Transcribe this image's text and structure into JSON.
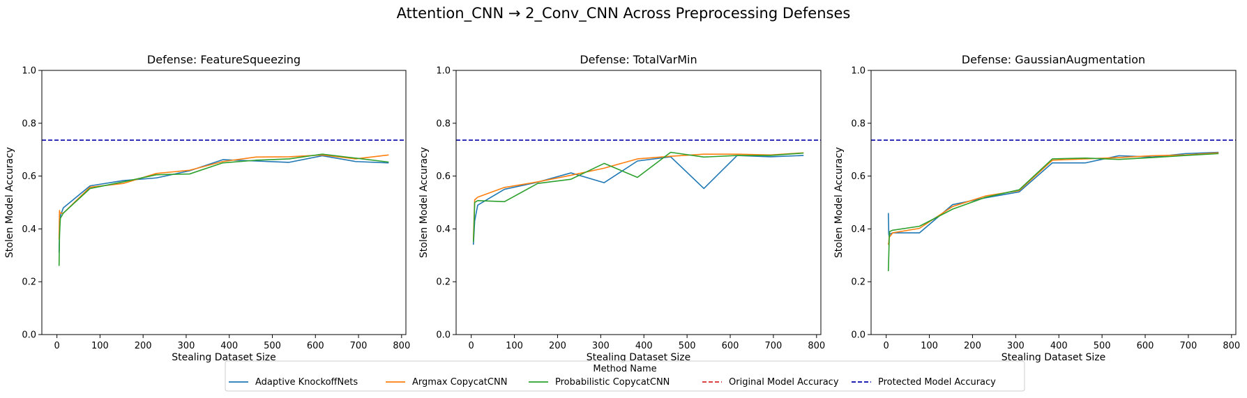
{
  "figure": {
    "title": "Attention_CNN → 2_Conv_CNN Across Preprocessing Defenses"
  },
  "legend": {
    "title": "Method Name",
    "placement": "bottom-center",
    "entries": [
      {
        "name": "Adaptive KnockoffNets",
        "color": "#1f77b4",
        "style": "solid"
      },
      {
        "name": "Argmax CopycatCNN",
        "color": "#ff7f0e",
        "style": "solid"
      },
      {
        "name": "Probabilistic CopycatCNN",
        "color": "#2ca02c",
        "style": "solid"
      },
      {
        "name": "Original Model Accuracy",
        "color": "#d62728",
        "style": "dashed"
      },
      {
        "name": "Protected Model Accuracy",
        "color": "#0000aa",
        "style": "dashed"
      }
    ]
  },
  "chart_data": [
    {
      "type": "line",
      "title": "Defense: FeatureSqueezing",
      "xlabel": "Stealing Dataset Size",
      "ylabel": "Stolen Model Accuracy",
      "xlim": [
        -35,
        810
      ],
      "ylim": [
        0,
        1
      ],
      "xticks": [
        0,
        100,
        200,
        300,
        400,
        500,
        600,
        700,
        800
      ],
      "yticks": [
        0.0,
        0.2,
        0.4,
        0.6,
        0.8,
        1.0
      ],
      "grid": false,
      "hlines": [
        {
          "name": "Protected Model Accuracy",
          "y": 0.736,
          "color": "#0000aa",
          "style": "dashed"
        }
      ],
      "series": [
        {
          "name": "Adaptive KnockoffNets",
          "color": "#1f77b4",
          "x": [
            5,
            6,
            7,
            8,
            15,
            77,
            154,
            231,
            308,
            385,
            462,
            539,
            616,
            693,
            770
          ],
          "y": [
            0.31,
            0.4,
            0.43,
            0.45,
            0.48,
            0.563,
            0.583,
            0.593,
            0.62,
            0.662,
            0.657,
            0.652,
            0.677,
            0.655,
            0.65
          ]
        },
        {
          "name": "Argmax CopycatCNN",
          "color": "#ff7f0e",
          "x": [
            5,
            6,
            7,
            8,
            15,
            77,
            154,
            231,
            308,
            385,
            462,
            539,
            616,
            693,
            770
          ],
          "y": [
            0.36,
            0.47,
            0.46,
            0.46,
            0.46,
            0.558,
            0.572,
            0.61,
            0.622,
            0.655,
            0.672,
            0.673,
            0.68,
            0.665,
            0.68
          ]
        },
        {
          "name": "Probabilistic CopycatCNN",
          "color": "#2ca02c",
          "x": [
            5,
            6,
            7,
            8,
            15,
            77,
            154,
            231,
            308,
            385,
            462,
            539,
            616,
            693,
            770
          ],
          "y": [
            0.26,
            0.37,
            0.41,
            0.44,
            0.46,
            0.553,
            0.578,
            0.605,
            0.608,
            0.65,
            0.66,
            0.665,
            0.683,
            0.668,
            0.653
          ]
        }
      ]
    },
    {
      "type": "line",
      "title": "Defense: TotalVarMin",
      "xlabel": "Stealing Dataset Size",
      "ylabel": "Stolen Model Accuracy",
      "xlim": [
        -35,
        810
      ],
      "ylim": [
        0,
        1
      ],
      "xticks": [
        0,
        100,
        200,
        300,
        400,
        500,
        600,
        700,
        800
      ],
      "yticks": [
        0.0,
        0.2,
        0.4,
        0.6,
        0.8,
        1.0
      ],
      "grid": false,
      "hlines": [
        {
          "name": "Protected Model Accuracy",
          "y": 0.736,
          "color": "#0000aa",
          "style": "dashed"
        }
      ],
      "series": [
        {
          "name": "Adaptive KnockoffNets",
          "color": "#1f77b4",
          "x": [
            5,
            6,
            7,
            8,
            15,
            77,
            154,
            231,
            308,
            385,
            462,
            539,
            616,
            693,
            770
          ],
          "y": [
            0.34,
            0.37,
            0.4,
            0.43,
            0.49,
            0.55,
            0.577,
            0.612,
            0.575,
            0.657,
            0.673,
            0.553,
            0.678,
            0.673,
            0.678
          ]
        },
        {
          "name": "Argmax CopycatCNN",
          "color": "#ff7f0e",
          "x": [
            5,
            6,
            7,
            8,
            15,
            77,
            154,
            231,
            308,
            385,
            462,
            539,
            616,
            693,
            770
          ],
          "y": [
            0.36,
            0.41,
            0.46,
            0.51,
            0.52,
            0.557,
            0.578,
            0.603,
            0.63,
            0.665,
            0.675,
            0.683,
            0.683,
            0.68,
            0.688
          ]
        },
        {
          "name": "Probabilistic CopycatCNN",
          "color": "#2ca02c",
          "x": [
            5,
            6,
            7,
            8,
            15,
            77,
            154,
            231,
            308,
            385,
            462,
            539,
            616,
            693,
            770
          ],
          "y": [
            0.35,
            0.39,
            0.44,
            0.5,
            0.507,
            0.503,
            0.572,
            0.588,
            0.648,
            0.595,
            0.69,
            0.672,
            0.678,
            0.678,
            0.687
          ]
        }
      ]
    },
    {
      "type": "line",
      "title": "Defense: GaussianAugmentation",
      "xlabel": "Stealing Dataset Size",
      "ylabel": "Stolen Model Accuracy",
      "xlim": [
        -35,
        810
      ],
      "ylim": [
        0,
        1
      ],
      "xticks": [
        0,
        100,
        200,
        300,
        400,
        500,
        600,
        700,
        800
      ],
      "yticks": [
        0.0,
        0.2,
        0.4,
        0.6,
        0.8,
        1.0
      ],
      "grid": false,
      "hlines": [
        {
          "name": "Protected Model Accuracy",
          "y": 0.736,
          "color": "#0000aa",
          "style": "dashed"
        }
      ],
      "series": [
        {
          "name": "Adaptive KnockoffNets",
          "color": "#1f77b4",
          "x": [
            5,
            6,
            7,
            8,
            15,
            77,
            154,
            231,
            308,
            385,
            462,
            539,
            616,
            693,
            770
          ],
          "y": [
            0.46,
            0.38,
            0.37,
            0.38,
            0.385,
            0.385,
            0.492,
            0.518,
            0.54,
            0.65,
            0.65,
            0.677,
            0.672,
            0.685,
            0.69
          ]
        },
        {
          "name": "Argmax CopycatCNN",
          "color": "#ff7f0e",
          "x": [
            5,
            6,
            7,
            8,
            15,
            77,
            154,
            231,
            308,
            385,
            462,
            539,
            616,
            693,
            770
          ],
          "y": [
            0.34,
            0.35,
            0.37,
            0.37,
            0.385,
            0.402,
            0.485,
            0.525,
            0.545,
            0.66,
            0.665,
            0.67,
            0.677,
            0.68,
            0.688
          ]
        },
        {
          "name": "Probabilistic CopycatCNN",
          "color": "#2ca02c",
          "x": [
            5,
            6,
            7,
            8,
            15,
            77,
            154,
            231,
            308,
            385,
            462,
            539,
            616,
            693,
            770
          ],
          "y": [
            0.24,
            0.3,
            0.36,
            0.39,
            0.395,
            0.41,
            0.475,
            0.52,
            0.548,
            0.665,
            0.668,
            0.663,
            0.67,
            0.678,
            0.685
          ]
        }
      ]
    }
  ]
}
